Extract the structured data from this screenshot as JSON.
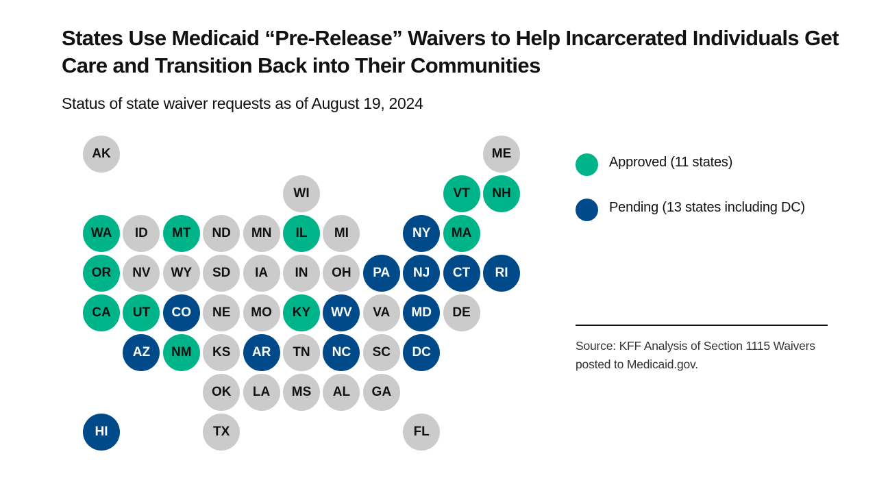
{
  "title": "States Use Medicaid “Pre-Release” Waivers to Help Incarcerated Individuals Get Care and Transition Back into Their Communities",
  "subtitle": "Status of state waiver requests as of August 19, 2024",
  "colors": {
    "approved": "#00b48a",
    "pending": "#004a8a",
    "none": "#cbcbcb",
    "approved_text": "#111111",
    "pending_text": "#ffffff",
    "none_text": "#111111"
  },
  "legend": [
    {
      "key": "approved",
      "label": "Approved (11 states)"
    },
    {
      "key": "pending",
      "label": "Pending (13 states including DC)"
    }
  ],
  "source": "Source: KFF Analysis of Section 1115 Waivers posted to Medicaid.gov.",
  "chart_data": {
    "type": "tile-map",
    "states": [
      {
        "abbr": "AK",
        "status": "none"
      },
      {
        "abbr": "ME",
        "status": "none"
      },
      {
        "abbr": "WI",
        "status": "none"
      },
      {
        "abbr": "VT",
        "status": "approved"
      },
      {
        "abbr": "NH",
        "status": "approved"
      },
      {
        "abbr": "WA",
        "status": "approved"
      },
      {
        "abbr": "ID",
        "status": "none"
      },
      {
        "abbr": "MT",
        "status": "approved"
      },
      {
        "abbr": "ND",
        "status": "none"
      },
      {
        "abbr": "MN",
        "status": "none"
      },
      {
        "abbr": "IL",
        "status": "approved"
      },
      {
        "abbr": "MI",
        "status": "none"
      },
      {
        "abbr": "NY",
        "status": "pending"
      },
      {
        "abbr": "MA",
        "status": "approved"
      },
      {
        "abbr": "OR",
        "status": "approved"
      },
      {
        "abbr": "NV",
        "status": "none"
      },
      {
        "abbr": "WY",
        "status": "none"
      },
      {
        "abbr": "SD",
        "status": "none"
      },
      {
        "abbr": "IA",
        "status": "none"
      },
      {
        "abbr": "IN",
        "status": "none"
      },
      {
        "abbr": "OH",
        "status": "none"
      },
      {
        "abbr": "PA",
        "status": "pending"
      },
      {
        "abbr": "NJ",
        "status": "pending"
      },
      {
        "abbr": "CT",
        "status": "pending"
      },
      {
        "abbr": "RI",
        "status": "pending"
      },
      {
        "abbr": "CA",
        "status": "approved"
      },
      {
        "abbr": "UT",
        "status": "approved"
      },
      {
        "abbr": "CO",
        "status": "pending"
      },
      {
        "abbr": "NE",
        "status": "none"
      },
      {
        "abbr": "MO",
        "status": "none"
      },
      {
        "abbr": "KY",
        "status": "approved"
      },
      {
        "abbr": "WV",
        "status": "pending"
      },
      {
        "abbr": "VA",
        "status": "none"
      },
      {
        "abbr": "MD",
        "status": "pending"
      },
      {
        "abbr": "DE",
        "status": "none"
      },
      {
        "abbr": "AZ",
        "status": "pending"
      },
      {
        "abbr": "NM",
        "status": "approved"
      },
      {
        "abbr": "KS",
        "status": "none"
      },
      {
        "abbr": "AR",
        "status": "pending"
      },
      {
        "abbr": "TN",
        "status": "none"
      },
      {
        "abbr": "NC",
        "status": "pending"
      },
      {
        "abbr": "SC",
        "status": "none"
      },
      {
        "abbr": "DC",
        "status": "pending"
      },
      {
        "abbr": "OK",
        "status": "none"
      },
      {
        "abbr": "LA",
        "status": "none"
      },
      {
        "abbr": "MS",
        "status": "none"
      },
      {
        "abbr": "AL",
        "status": "none"
      },
      {
        "abbr": "GA",
        "status": "none"
      },
      {
        "abbr": "HI",
        "status": "pending"
      },
      {
        "abbr": "TX",
        "status": "none"
      },
      {
        "abbr": "FL",
        "status": "none"
      }
    ]
  }
}
